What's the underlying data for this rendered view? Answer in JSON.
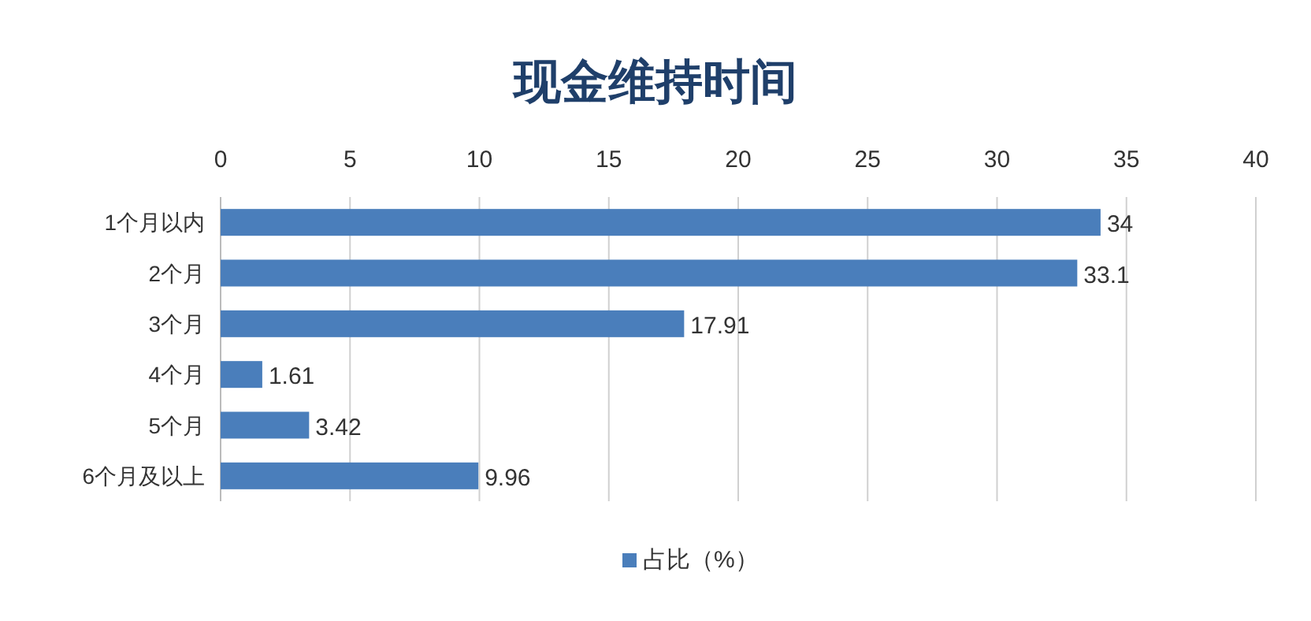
{
  "chart_data": {
    "type": "bar",
    "orientation": "horizontal",
    "title": "现金维持时间",
    "categories": [
      "1个月以内",
      "2个月",
      "3个月",
      "4个月",
      "5个月",
      "6个月及以上"
    ],
    "series": [
      {
        "name": "占比（%）",
        "color": "#4a7ebb",
        "values": [
          34,
          33.1,
          17.91,
          1.61,
          3.42,
          9.96
        ]
      }
    ],
    "xlim": [
      0,
      40
    ],
    "xticks": [
      0,
      5,
      10,
      15,
      20,
      25,
      30,
      35,
      40
    ],
    "grid": "x",
    "legend": "bottom",
    "data_labels": true
  }
}
